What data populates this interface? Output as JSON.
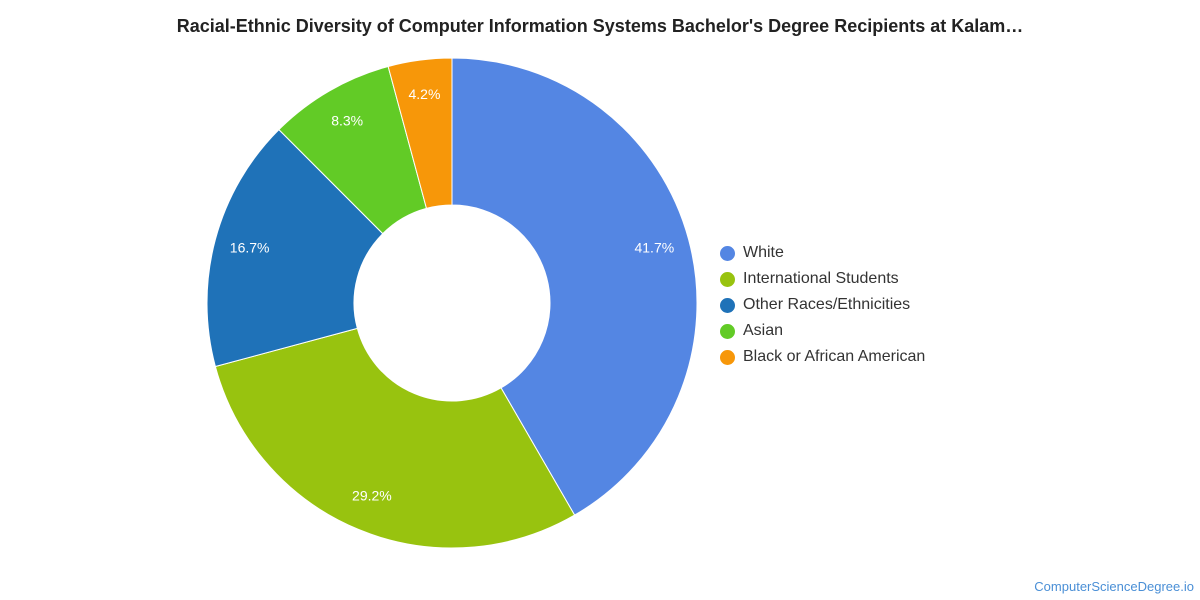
{
  "chart_data": {
    "type": "pie",
    "title": "Racial-Ethnic Diversity of Computer Information Systems Bachelor's Degree Recipients at Kalam…",
    "donut": true,
    "legend_position": "right",
    "slices": [
      {
        "label": "White",
        "value": 41.7,
        "display": "41.7%",
        "color": "#5486e3"
      },
      {
        "label": "International Students",
        "value": 29.2,
        "display": "29.2%",
        "color": "#98c30f"
      },
      {
        "label": "Other Races/Ethnicities",
        "value": 16.7,
        "display": "16.7%",
        "color": "#1f72b8"
      },
      {
        "label": "Asian",
        "value": 8.3,
        "display": "8.3%",
        "color": "#62cb26"
      },
      {
        "label": "Black or African American",
        "value": 4.2,
        "display": "4.2%",
        "color": "#f79709"
      }
    ]
  },
  "watermark": "ComputerScienceDegree.io"
}
